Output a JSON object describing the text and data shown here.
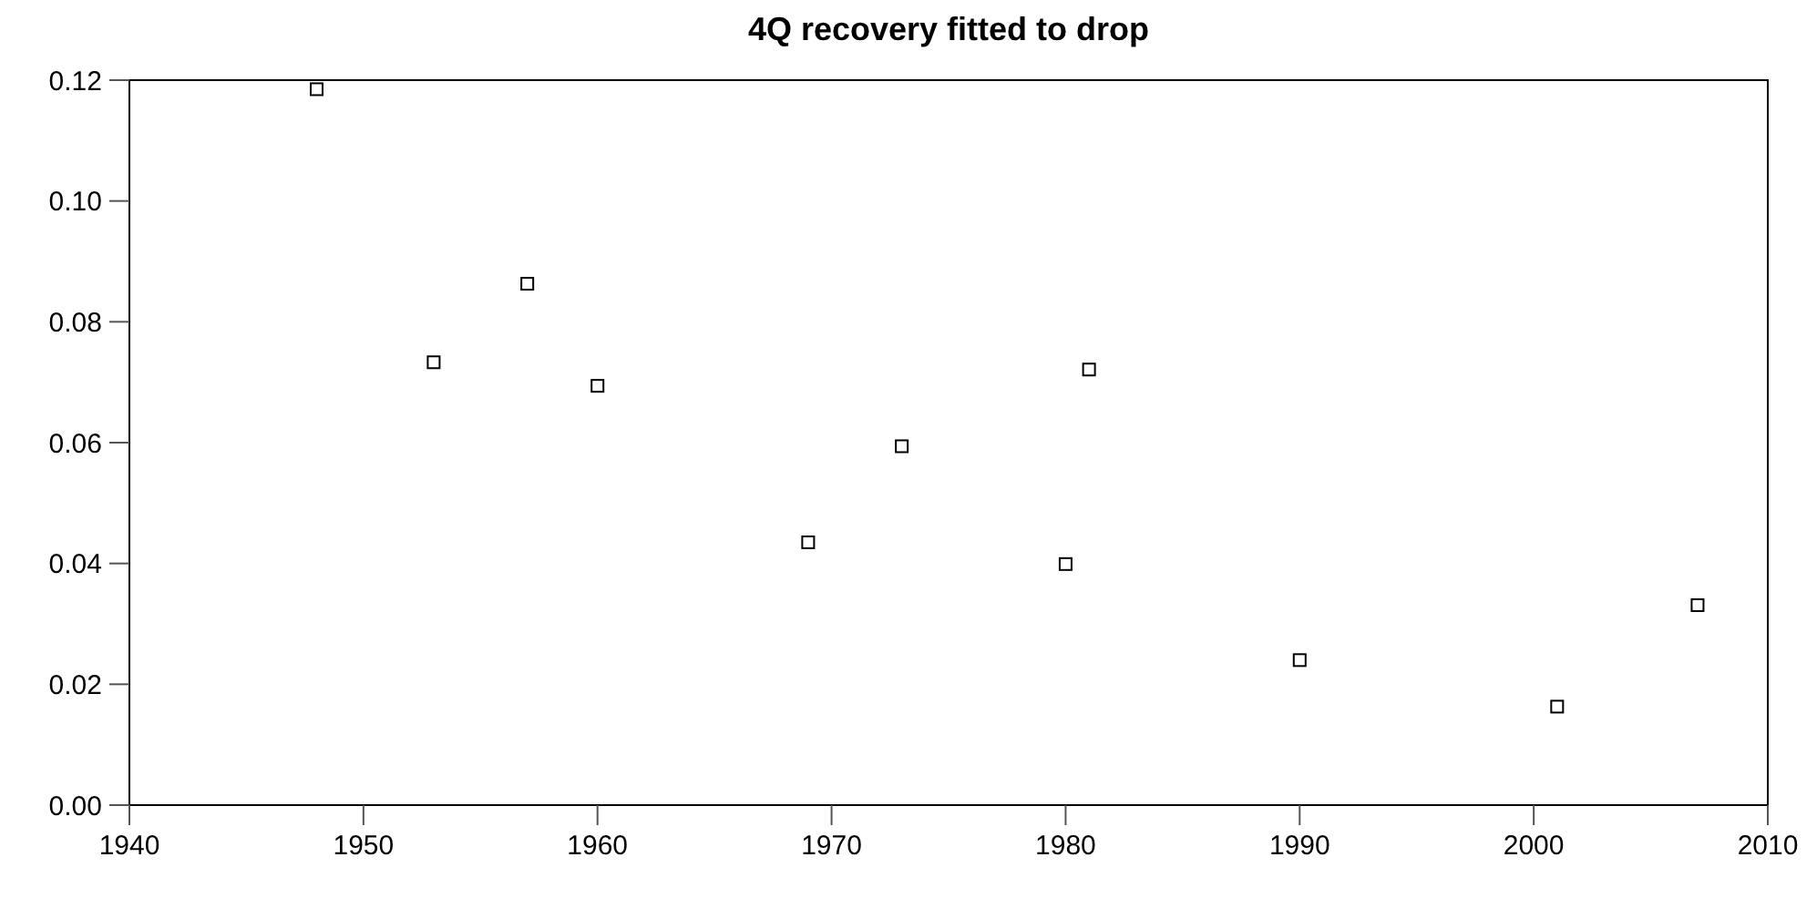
{
  "chart_data": {
    "type": "scatter",
    "title": "4Q recovery fitted to drop",
    "x": [
      1948,
      1953,
      1957,
      1960,
      1969,
      1973,
      1980,
      1981,
      1990,
      2001,
      2007
    ],
    "series": [
      {
        "color": "#000000",
        "values": [
          0.1185,
          0.0733,
          0.0863,
          0.0694,
          0.0435,
          0.0594,
          0.0399,
          0.0721,
          0.024,
          0.0163,
          0.0331
        ]
      }
    ],
    "marker": "square",
    "xlim": [
      1940,
      2010
    ],
    "xticks": [
      1940,
      1950,
      1960,
      1970,
      1980,
      1990,
      2000,
      2010
    ],
    "ylim": [
      0,
      0.12
    ],
    "yticks": [
      {
        "value": 0,
        "label": "0.00"
      },
      {
        "value": 0.02,
        "label": "0.02"
      },
      {
        "value": 0.04,
        "label": "0.04"
      },
      {
        "value": 0.06,
        "label": "0.06"
      },
      {
        "value": 0.08,
        "label": "0.08"
      },
      {
        "value": 0.1,
        "label": "0.10"
      },
      {
        "value": 0.12,
        "label": "0.12"
      }
    ],
    "grid": false
  }
}
